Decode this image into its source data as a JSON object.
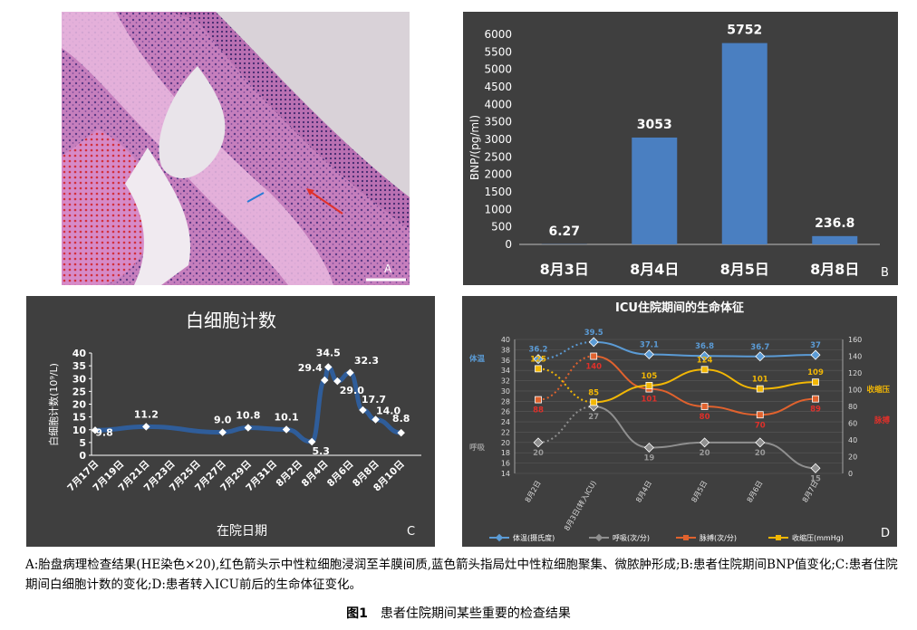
{
  "panels": {
    "A": {
      "letter": "A"
    },
    "B": {
      "letter": "B"
    },
    "C": {
      "letter": "C"
    },
    "D": {
      "letter": "D"
    }
  },
  "colors": {
    "chart_bg": "#3f3f3f",
    "bnp_bar": "#4a7fc1",
    "wbc_line": "#2f5d9a",
    "temperature": "#5b9bd5",
    "respiration": "#8f8f8f",
    "pulse": "#e0622e",
    "systolic": "#f2b705",
    "histology_pink": "#c77bbf",
    "arrow_red": "#e0302a",
    "arrow_blue": "#2a7bd6"
  },
  "chart_data": [
    {
      "panel": "B",
      "type": "bar",
      "categories": [
        "8月3日",
        "8月4日",
        "8月5日",
        "8月8日"
      ],
      "values": [
        6.27,
        3053,
        5752,
        236.8
      ],
      "value_labels": [
        "6.27",
        "3053",
        "5752",
        "236.8"
      ],
      "title": "",
      "xlabel": "",
      "ylabel": "BNP/(pg/ml)",
      "ylim": [
        0,
        6000
      ],
      "yticks": [
        0,
        500,
        1000,
        1500,
        2000,
        2500,
        3000,
        3500,
        4000,
        4500,
        5000,
        5500,
        6000
      ],
      "grid": false
    },
    {
      "panel": "C",
      "type": "line",
      "title": "白细胞计数",
      "xlabel": "在院日期",
      "ylabel": "白细胞计数(10⁹/L)",
      "ylim": [
        0,
        40
      ],
      "yticks": [
        0,
        5,
        10,
        15,
        20,
        25,
        30,
        35,
        40
      ],
      "xtick_labels": [
        "7月17日",
        "7月19日",
        "7月21日",
        "7月23日",
        "7月25日",
        "7月27日",
        "7月29日",
        "7月31日",
        "8月2日",
        "8月4日",
        "8月6日",
        "8月8日",
        "8月10日"
      ],
      "x": [
        "7月17日",
        "7月21日",
        "7月27日",
        "7月29日",
        "8月1日",
        "8月3日",
        "8月4日",
        "8月4日",
        "8月5日",
        "8月6日",
        "8月7日",
        "8月8日",
        "8月10日"
      ],
      "y": [
        9.8,
        11.2,
        9.0,
        10.8,
        10.1,
        5.3,
        29.4,
        34.5,
        29.0,
        32.3,
        17.7,
        14.0,
        8.8
      ],
      "point_labels": [
        "9.8",
        "11.2",
        "9.0",
        "10.8",
        "10.1",
        "5.3",
        "29.4",
        "34.5",
        "29.0",
        "32.3",
        "17.7",
        "14.0",
        "8.8"
      ],
      "grid": false
    },
    {
      "panel": "D",
      "type": "line",
      "title": "ICU住院期间的生命体征",
      "categories": [
        "8月2日",
        "8月3日(转入ICU)",
        "8月4日",
        "8月5日",
        "8月6日",
        "8月7日"
      ],
      "left_axis": {
        "ylim": [
          14,
          40
        ],
        "yticks": [
          14,
          16,
          18,
          20,
          22,
          24,
          26,
          28,
          30,
          32,
          34,
          36,
          38,
          40
        ]
      },
      "right_axis": {
        "ylim": [
          0,
          160
        ],
        "yticks": [
          0,
          20,
          40,
          60,
          80,
          100,
          120,
          140,
          160
        ]
      },
      "series": [
        {
          "name": "体温(摄氏度)",
          "axis": "left",
          "values": [
            36.2,
            39.5,
            37.1,
            36.8,
            36.7,
            37
          ],
          "labels": [
            "36.2",
            "39.5",
            "37.1",
            "36.8",
            "36.7",
            "37"
          ],
          "side_label": "体温"
        },
        {
          "name": "呼吸(次/分)",
          "axis": "left",
          "values": [
            20,
            27,
            19,
            20,
            20,
            15
          ],
          "labels": [
            "20",
            "27",
            "19",
            "20",
            "20",
            "15"
          ],
          "side_label": "呼吸"
        },
        {
          "name": "脉搏(次/分)",
          "axis": "right",
          "values": [
            88,
            140,
            101,
            80,
            70,
            89
          ],
          "labels": [
            "88",
            "140",
            "101",
            "80",
            "70",
            "89"
          ],
          "side_label": "脉搏"
        },
        {
          "name": "收缩压(mmHg)",
          "axis": "right",
          "values": [
            125,
            85,
            105,
            124,
            101,
            109
          ],
          "labels": [
            "125",
            "85",
            "105",
            "124",
            "101",
            "109"
          ],
          "side_label": "收缩压"
        }
      ],
      "legend_position": "bottom",
      "grid": true
    }
  ],
  "caption": {
    "text": "A:胎盘病理检查结果(HE染色×20),红色箭头示中性粒细胞浸润至羊膜间质,蓝色箭头指局灶中性粒细胞聚集、微脓肿形成;B:患者住院期间BNP值变化;C:患者住院期间白细胞计数的变化;D:患者转入ICU前后的生命体征变化。",
    "figure_number": "图1",
    "figure_title": "患者住院期间某些重要的检查结果"
  }
}
